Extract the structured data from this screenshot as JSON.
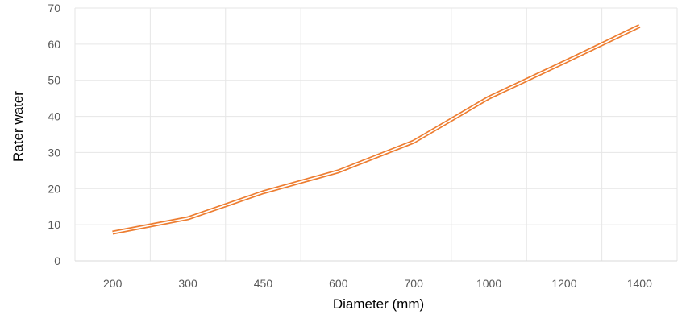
{
  "chart_data": {
    "type": "line",
    "title": "",
    "xlabel": "Diameter (mm)",
    "ylabel": "Rater water",
    "categories": [
      "200",
      "300",
      "450",
      "600",
      "700",
      "1000",
      "1200",
      "1400"
    ],
    "series": [
      {
        "values": [
          7.8,
          11.8,
          19,
          24.8,
          33,
          45.2,
          55,
          65
        ],
        "color": "#ED7D31"
      }
    ],
    "ylim": [
      0,
      70
    ],
    "yticks": [
      "0",
      "10",
      "20",
      "30",
      "40",
      "50",
      "60",
      "70"
    ],
    "grid": true,
    "legend": "none"
  }
}
